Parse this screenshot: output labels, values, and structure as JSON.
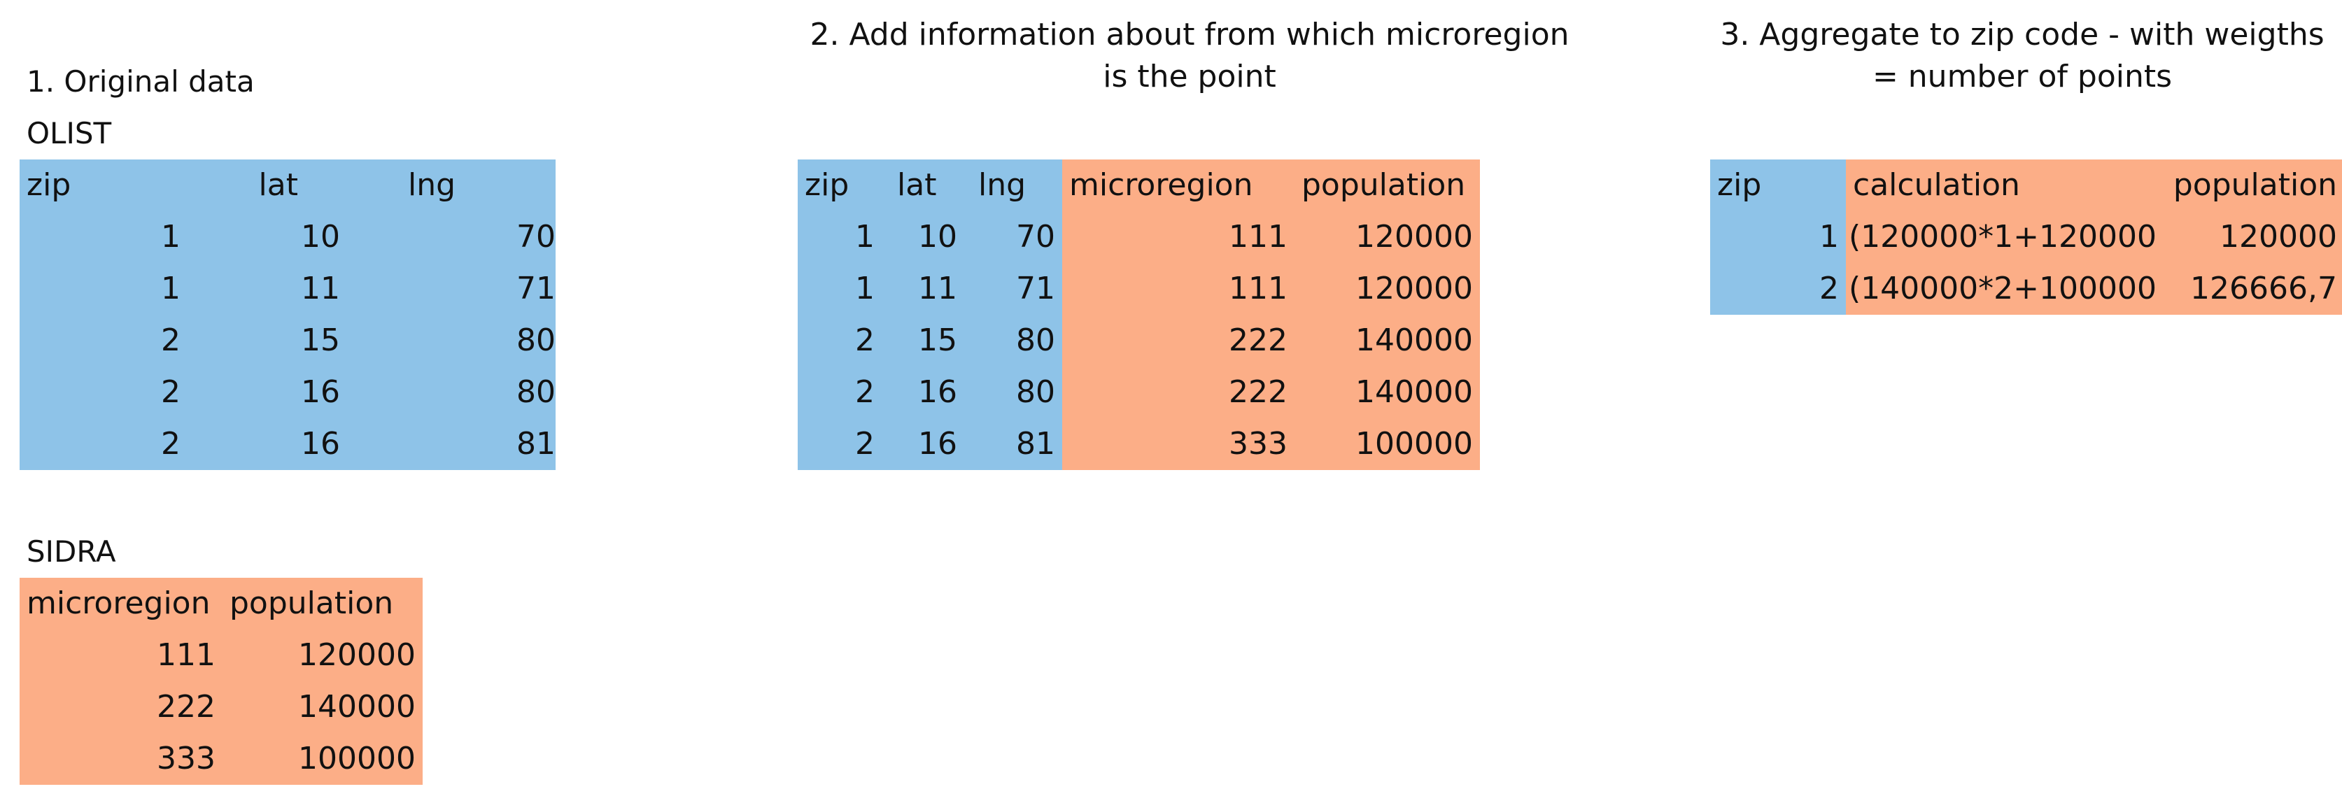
{
  "step1": {
    "title": "1. Original data"
  },
  "olist": {
    "label": "OLIST",
    "headers": [
      "zip",
      "lat",
      "lng"
    ],
    "rows": [
      [
        "1",
        "10",
        "70"
      ],
      [
        "1",
        "11",
        "71"
      ],
      [
        "2",
        "15",
        "80"
      ],
      [
        "2",
        "16",
        "80"
      ],
      [
        "2",
        "16",
        "81"
      ]
    ]
  },
  "sidra": {
    "label": "SIDRA",
    "headers": [
      "microregion",
      "population"
    ],
    "rows": [
      [
        "111",
        "120000"
      ],
      [
        "222",
        "140000"
      ],
      [
        "333",
        "100000"
      ]
    ]
  },
  "step2": {
    "title_line1": "2. Add information about from which microregion",
    "title_line2": "is the point",
    "headers": [
      "zip",
      "lat",
      "lng",
      "microregion",
      "population"
    ],
    "rows": [
      [
        "1",
        "10",
        "70",
        "111",
        "120000"
      ],
      [
        "1",
        "11",
        "71",
        "111",
        "120000"
      ],
      [
        "2",
        "15",
        "80",
        "222",
        "140000"
      ],
      [
        "2",
        "16",
        "80",
        "222",
        "140000"
      ],
      [
        "2",
        "16",
        "81",
        "333",
        "100000"
      ]
    ]
  },
  "step3": {
    "title_line1": "3. Aggregate to zip code - with weigths",
    "title_line2": "= number of points",
    "headers": [
      "zip",
      "calculation",
      "population"
    ],
    "rows": [
      [
        "1",
        "(120000*1+120000",
        "120000"
      ],
      [
        "2",
        "(140000*2+100000",
        "126666,7"
      ]
    ]
  },
  "colors": {
    "blue_fill": "#8EC3E8",
    "orange_fill": "#FCAE87"
  }
}
